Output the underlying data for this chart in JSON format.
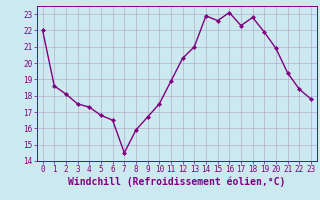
{
  "x": [
    0,
    1,
    2,
    3,
    4,
    5,
    6,
    7,
    8,
    9,
    10,
    11,
    12,
    13,
    14,
    15,
    16,
    17,
    18,
    19,
    20,
    21,
    22,
    23
  ],
  "y": [
    22.0,
    18.6,
    18.1,
    17.5,
    17.3,
    16.8,
    16.5,
    14.5,
    15.9,
    16.7,
    17.5,
    18.9,
    20.3,
    21.0,
    22.9,
    22.6,
    23.1,
    22.3,
    22.8,
    21.9,
    20.9,
    19.4,
    18.4,
    17.8
  ],
  "line_color": "#800080",
  "marker": "D",
  "marker_size": 2.0,
  "bg_color": "#cde9f0",
  "grid_color": "#b0b0cc",
  "xlabel": "Windchill (Refroidissement éolien,°C)",
  "ylim": [
    14,
    23.5
  ],
  "xlim": [
    -0.5,
    23.5
  ],
  "yticks": [
    14,
    15,
    16,
    17,
    18,
    19,
    20,
    21,
    22,
    23
  ],
  "xticks": [
    0,
    1,
    2,
    3,
    4,
    5,
    6,
    7,
    8,
    9,
    10,
    11,
    12,
    13,
    14,
    15,
    16,
    17,
    18,
    19,
    20,
    21,
    22,
    23
  ],
  "tick_label_fontsize": 5.5,
  "xlabel_fontsize": 7.0,
  "line_width": 1.0
}
